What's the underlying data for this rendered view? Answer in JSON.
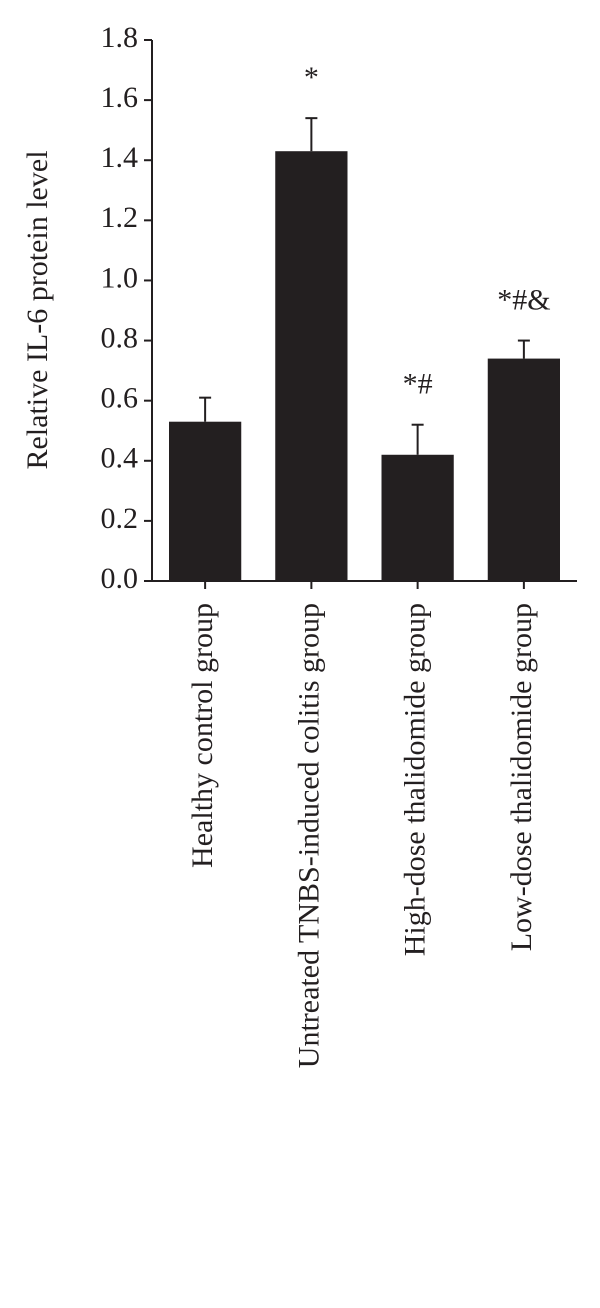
{
  "chart_data": {
    "type": "bar",
    "y_label": "Relative IL-6 protein level",
    "categories": [
      "Healthy control group",
      "Untreated TNBS-induced colitis group",
      "High-dose thalidomide group",
      "Low-dose thalidomide group"
    ],
    "values": [
      0.53,
      1.43,
      0.42,
      0.74
    ],
    "errors": [
      0.08,
      0.11,
      0.1,
      0.06
    ],
    "annotations": [
      null,
      "*",
      "*#",
      "*#&"
    ],
    "color": "#231f20",
    "ylim": [
      0,
      1.8
    ],
    "yticks": [
      {
        "value": 0,
        "label": "0.0"
      },
      {
        "value": 0.2,
        "label": "0.2"
      },
      {
        "value": 0.4,
        "label": "0.4"
      },
      {
        "value": 0.6,
        "label": "0.6"
      },
      {
        "value": 0.8,
        "label": "0.8"
      },
      {
        "value": 1,
        "label": "1.0"
      },
      {
        "value": 1.2,
        "label": "1.2"
      },
      {
        "value": 1.4,
        "label": "1.4"
      },
      {
        "value": 1.6,
        "label": "1.6"
      },
      {
        "value": 1.8,
        "label": "1.8"
      }
    ],
    "grid": false
  }
}
